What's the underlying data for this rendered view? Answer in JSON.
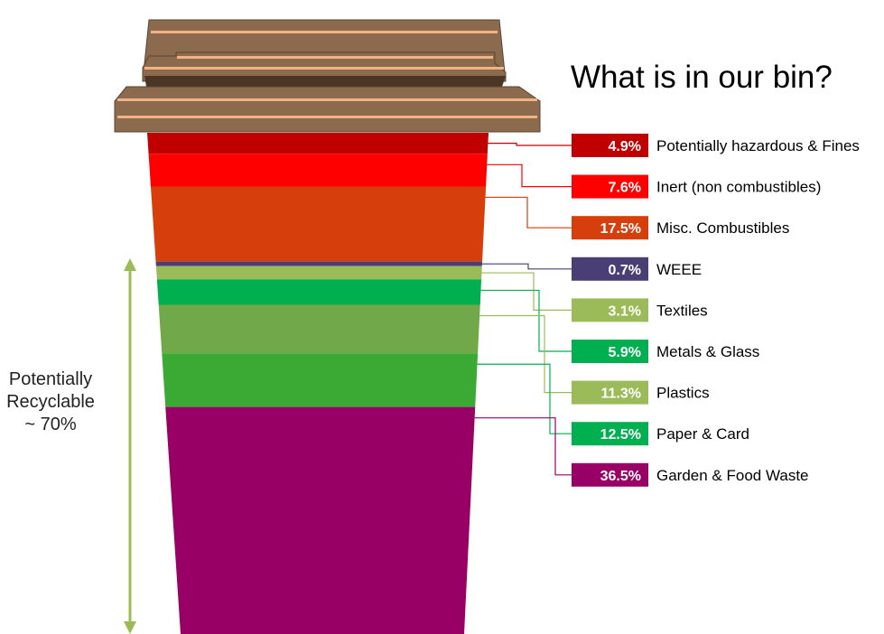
{
  "chart_data": {
    "type": "bar",
    "title": "What is in our bin?",
    "side_annotation": [
      "Potentially",
      "Recyclable",
      "~ 70%"
    ],
    "categories": [
      "Potentially hazardous & Fines",
      "Inert (non combustibles)",
      "Misc. Combustibles",
      "WEEE",
      "Textiles",
      "Metals & Glass",
      "Plastics",
      "Paper & Card",
      "Garden & Food Waste"
    ],
    "values": [
      4.9,
      7.6,
      17.5,
      0.7,
      3.1,
      5.9,
      11.3,
      12.5,
      36.5
    ],
    "value_labels": [
      "4.9%",
      "7.6%",
      "17.5%",
      "0.7%",
      "3.1%",
      "5.9%",
      "11.3%",
      "12.5%",
      "36.5%"
    ],
    "colors": [
      "#c00000",
      "#ff0000",
      "#d63e0c",
      "#4a3f74",
      "#9bbb59",
      "#00b050",
      "#70a84a",
      "#3aaa35",
      "#990066"
    ],
    "label_colors": [
      "#c00000",
      "#ff0000",
      "#d63e0c",
      "#4a3f74",
      "#9bbb59",
      "#00b050",
      "#9bbb59",
      "#00b050",
      "#990066"
    ],
    "unit": "%"
  },
  "bin": {
    "lid_color": "#8b6a4e",
    "lid_stripe_color": "#f4b183"
  },
  "arrow_color": "#9bbb59"
}
